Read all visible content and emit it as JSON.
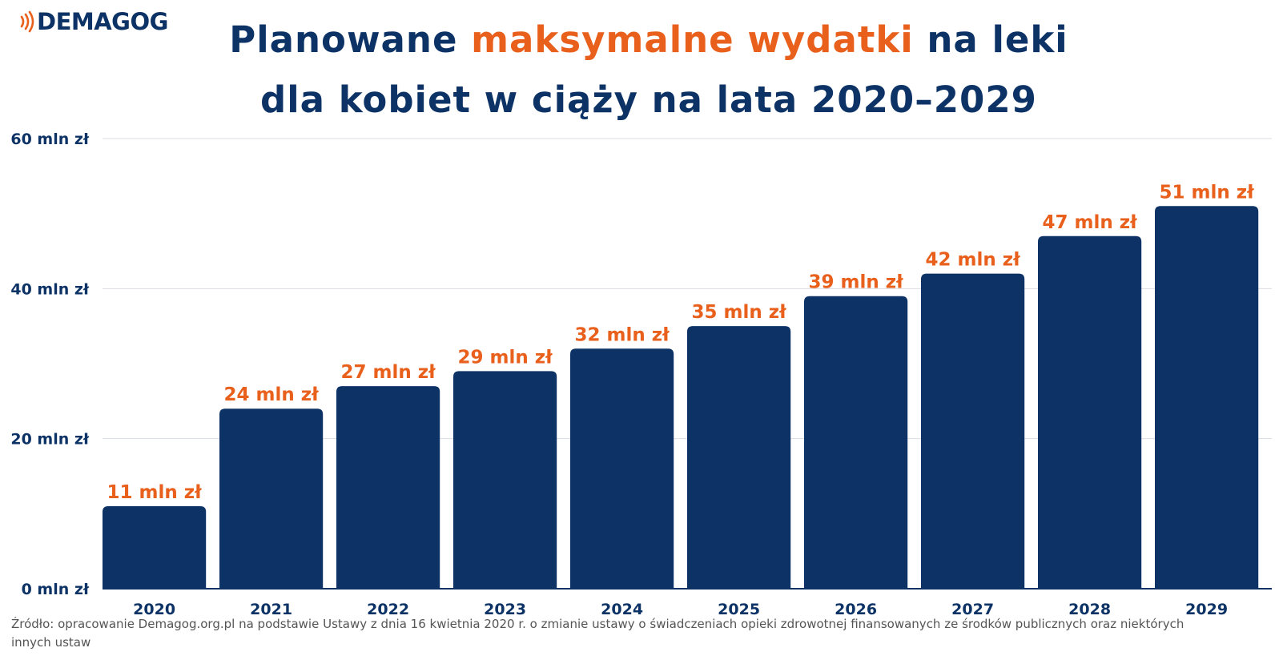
{
  "brand": {
    "logo_text": "DEMAGOG",
    "logo_icon": "signal-waves-icon"
  },
  "title": {
    "line1_prefix": "Planowane ",
    "line1_highlight": "maksymalne wydatki",
    "line1_suffix": " na leki",
    "line2": "dla kobiet w ciąży na lata 2020–2029"
  },
  "colors": {
    "bar": "#0d3366",
    "label": "#e8601c",
    "axis_text": "#0d3366",
    "grid": "#d9dde3"
  },
  "chart_data": {
    "type": "bar",
    "categories": [
      "2020",
      "2021",
      "2022",
      "2023",
      "2024",
      "2025",
      "2026",
      "2027",
      "2028",
      "2029"
    ],
    "values": [
      11,
      24,
      27,
      29,
      32,
      35,
      39,
      42,
      47,
      51
    ],
    "data_labels": [
      "11 mln zł",
      "24 mln zł",
      "27 mln zł",
      "29 mln zł",
      "32 mln zł",
      "35 mln zł",
      "39 mln zł",
      "42 mln zł",
      "47 mln zł",
      "51 mln zł"
    ],
    "y_ticks": [
      0,
      20,
      40,
      60
    ],
    "y_tick_labels": [
      "0 mln zł",
      "20 mln zł",
      "40 mln zł",
      "60 mln zł"
    ],
    "ylim": [
      0,
      60
    ],
    "grid": true
  },
  "source": "Źródło: opracowanie Demagog.org.pl na podstawie Ustawy z dnia 16 kwietnia 2020 r. o zmianie ustawy o świadczeniach opieki zdrowotnej finansowanych ze środków publicznych oraz niektórych innych ustaw"
}
